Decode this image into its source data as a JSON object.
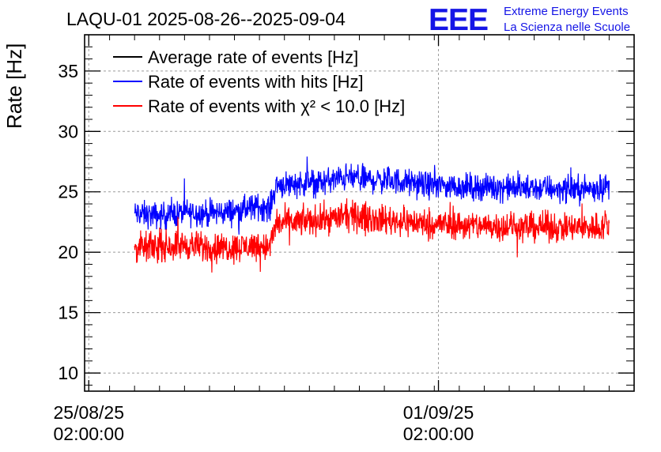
{
  "chart_data": {
    "type": "line",
    "title": "LAQU-01 2025-08-26--2025-09-04",
    "xlabel": "",
    "ylabel": "Rate [Hz]",
    "xlim": [
      "2025-08-25T00:00",
      "2025-09-05T00:00"
    ],
    "ylim": [
      8.5,
      38
    ],
    "yticks": [
      10,
      15,
      20,
      25,
      30,
      35
    ],
    "xticks": [
      {
        "value": "2025-08-25T02:00",
        "label_line1": "25/08/25",
        "label_line2": "02:00:00"
      },
      {
        "value": "2025-09-01T02:00",
        "label_line1": "01/09/25",
        "label_line2": "02:00:00"
      }
    ],
    "grid": true,
    "legend_position": "top-left",
    "series": [
      {
        "name": "Average rate of events [Hz]",
        "color": "#000000",
        "x": [],
        "y": []
      },
      {
        "name": "Rate of events with hits [Hz]",
        "color": "#0000ff",
        "x": [
          "2025-08-26T00:00",
          "2025-08-26T12:00",
          "2025-08-27T00:00",
          "2025-08-27T12:00",
          "2025-08-28T00:00",
          "2025-08-28T12:00",
          "2025-08-28T17:00",
          "2025-08-28T20:00",
          "2025-08-29T06:00",
          "2025-08-29T18:00",
          "2025-08-30T06:00",
          "2025-08-30T18:00",
          "2025-08-31T06:00",
          "2025-08-31T18:00",
          "2025-09-01T06:00",
          "2025-09-01T18:00",
          "2025-09-02T06:00",
          "2025-09-02T18:00",
          "2025-09-03T06:00",
          "2025-09-03T18:00",
          "2025-09-04T06:00",
          "2025-09-04T12:00"
        ],
        "y": [
          23.2,
          23.0,
          23.3,
          23.2,
          23.4,
          23.8,
          23.6,
          25.6,
          25.7,
          25.8,
          26.2,
          26.0,
          25.9,
          25.6,
          25.5,
          25.4,
          25.4,
          25.3,
          25.3,
          25.2,
          25.3,
          25.5
        ],
        "band": 1.8
      },
      {
        "name": "Rate of events with χ² < 10.0 [Hz]",
        "color": "#ff0000",
        "x": [
          "2025-08-26T00:00",
          "2025-08-26T12:00",
          "2025-08-27T00:00",
          "2025-08-27T12:00",
          "2025-08-28T00:00",
          "2025-08-28T12:00",
          "2025-08-28T17:00",
          "2025-08-28T20:00",
          "2025-08-29T06:00",
          "2025-08-29T18:00",
          "2025-08-30T06:00",
          "2025-08-30T18:00",
          "2025-08-31T06:00",
          "2025-08-31T18:00",
          "2025-09-01T06:00",
          "2025-09-01T18:00",
          "2025-09-02T06:00",
          "2025-09-02T18:00",
          "2025-09-03T06:00",
          "2025-09-03T18:00",
          "2025-09-04T06:00",
          "2025-09-04T12:00"
        ],
        "y": [
          20.3,
          20.5,
          20.6,
          20.4,
          20.4,
          20.6,
          20.4,
          22.4,
          22.5,
          22.7,
          23.0,
          22.8,
          22.6,
          22.4,
          22.3,
          22.2,
          22.2,
          22.1,
          22.1,
          22.0,
          22.1,
          22.2
        ],
        "band": 2.0
      }
    ]
  },
  "logo": {
    "mark": "EEE",
    "line1": "Extreme Energy Events",
    "line2": "La Scienza nelle Scuole"
  }
}
